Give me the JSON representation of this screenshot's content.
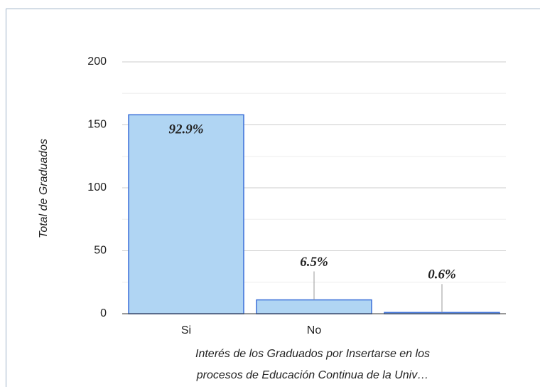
{
  "chart_data": {
    "type": "bar",
    "categories": [
      "Si",
      "No",
      null
    ],
    "values": [
      158,
      11,
      1
    ],
    "annotations": [
      "92.9%",
      "6.5%",
      "0.6%"
    ],
    "color": "#b0d5f3",
    "edge_color": "#3a6fd8",
    "ylabel": "Total de Graduados",
    "xlabel": [
      "Interés de los Graduados por Insertarse en los",
      "procesos de Educación Continua de la Univ…"
    ],
    "ylim": [
      0,
      200
    ],
    "yticks": [
      0,
      50,
      100,
      150,
      200
    ],
    "minor_yticks": [
      25,
      75,
      125,
      175
    ],
    "grid": true
  }
}
